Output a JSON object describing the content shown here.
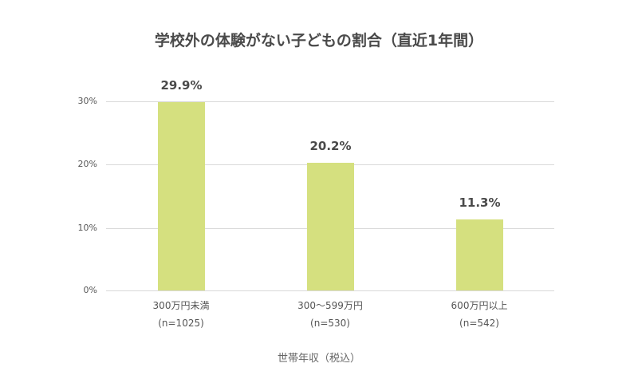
{
  "chart_data": {
    "type": "bar",
    "title": "学校外の体験がない子どもの割合（直近1年間）",
    "xlabel": "世帯年収（税込）",
    "ylabel": "",
    "categories": [
      "300万円未満",
      "300〜599万円",
      "600万円以上"
    ],
    "sample_sizes": [
      "(n=1025)",
      "(n=530)",
      "(n=542)"
    ],
    "values": [
      29.9,
      20.2,
      11.3
    ],
    "value_labels": [
      "29.9%",
      "20.2%",
      "11.3%"
    ],
    "ylim": [
      0,
      30
    ],
    "yticks": [
      "0%",
      "10%",
      "20%",
      "30%"
    ],
    "grid": true,
    "legend": null,
    "bar_color": "#d5e07f"
  },
  "title": "学校外の体験がない子どもの割合（直近1年間）",
  "xaxis_title": "世帯年収（税込）",
  "yticks": [
    "30%",
    "20%",
    "10%",
    "0%"
  ],
  "bars": [
    {
      "category": "300万円未満",
      "n": "(n=1025)",
      "label": "29.9%",
      "value": 29.9
    },
    {
      "category": "300〜599万円",
      "n": "(n=530)",
      "label": "20.2%",
      "value": 20.2
    },
    {
      "category": "600万円以上",
      "n": "(n=542)",
      "label": "11.3%",
      "value": 11.3
    }
  ],
  "colors": {
    "bar": "#d5e07f",
    "grid": "#d9d9d9",
    "title": "#4a4a4a"
  }
}
